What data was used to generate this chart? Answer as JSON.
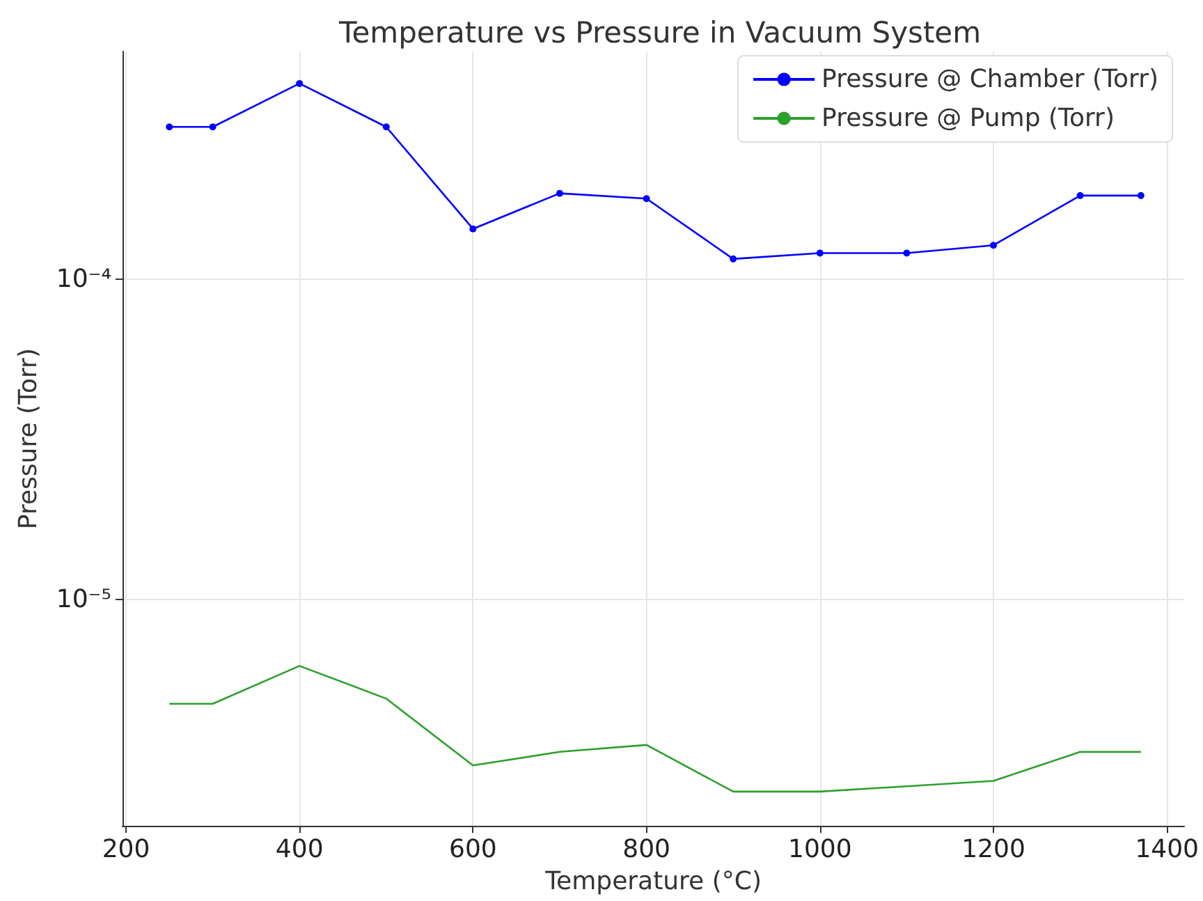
{
  "chart_data": {
    "type": "line",
    "title": "Temperature vs Pressure in Vacuum System",
    "xlabel": "Temperature (°C)",
    "ylabel": "Pressure (Torr)",
    "log": "y",
    "grid": true,
    "legend": "top right",
    "xlim": [
      196,
      1420
    ],
    "xticks": [
      200,
      400,
      600,
      800,
      1000,
      1200,
      1400
    ],
    "ylim": [
      1.96e-06,
      0.000516
    ],
    "yticks": [
      {
        "value": 1e-05,
        "label": "10⁻⁵"
      },
      {
        "value": 0.0001,
        "label": "10⁻⁴"
      }
    ],
    "series": [
      {
        "name": "Pressure @ Chamber (Torr)",
        "color": "#0000ff",
        "marker": "circle",
        "x": [
          250,
          300,
          400,
          500,
          600,
          700,
          800,
          900,
          1000,
          1100,
          1200,
          1300,
          1370
        ],
        "values": [
          0.0003,
          0.0003,
          0.00041,
          0.0003,
          0.000144,
          0.000186,
          0.000179,
          0.000116,
          0.000121,
          0.000121,
          0.000128,
          0.000183,
          0.000183
        ]
      },
      {
        "name": "Pressure @ Pump (Torr)",
        "color": "#2ca02c",
        "marker": "none",
        "x": [
          250,
          300,
          400,
          500,
          600,
          700,
          800,
          900,
          1000,
          1200,
          1300,
          1370
        ],
        "values": [
          4.72e-06,
          4.72e-06,
          6.2e-06,
          4.9e-06,
          3.03e-06,
          3.34e-06,
          3.51e-06,
          2.51e-06,
          2.51e-06,
          2.71e-06,
          3.34e-06,
          3.34e-06
        ]
      }
    ]
  }
}
